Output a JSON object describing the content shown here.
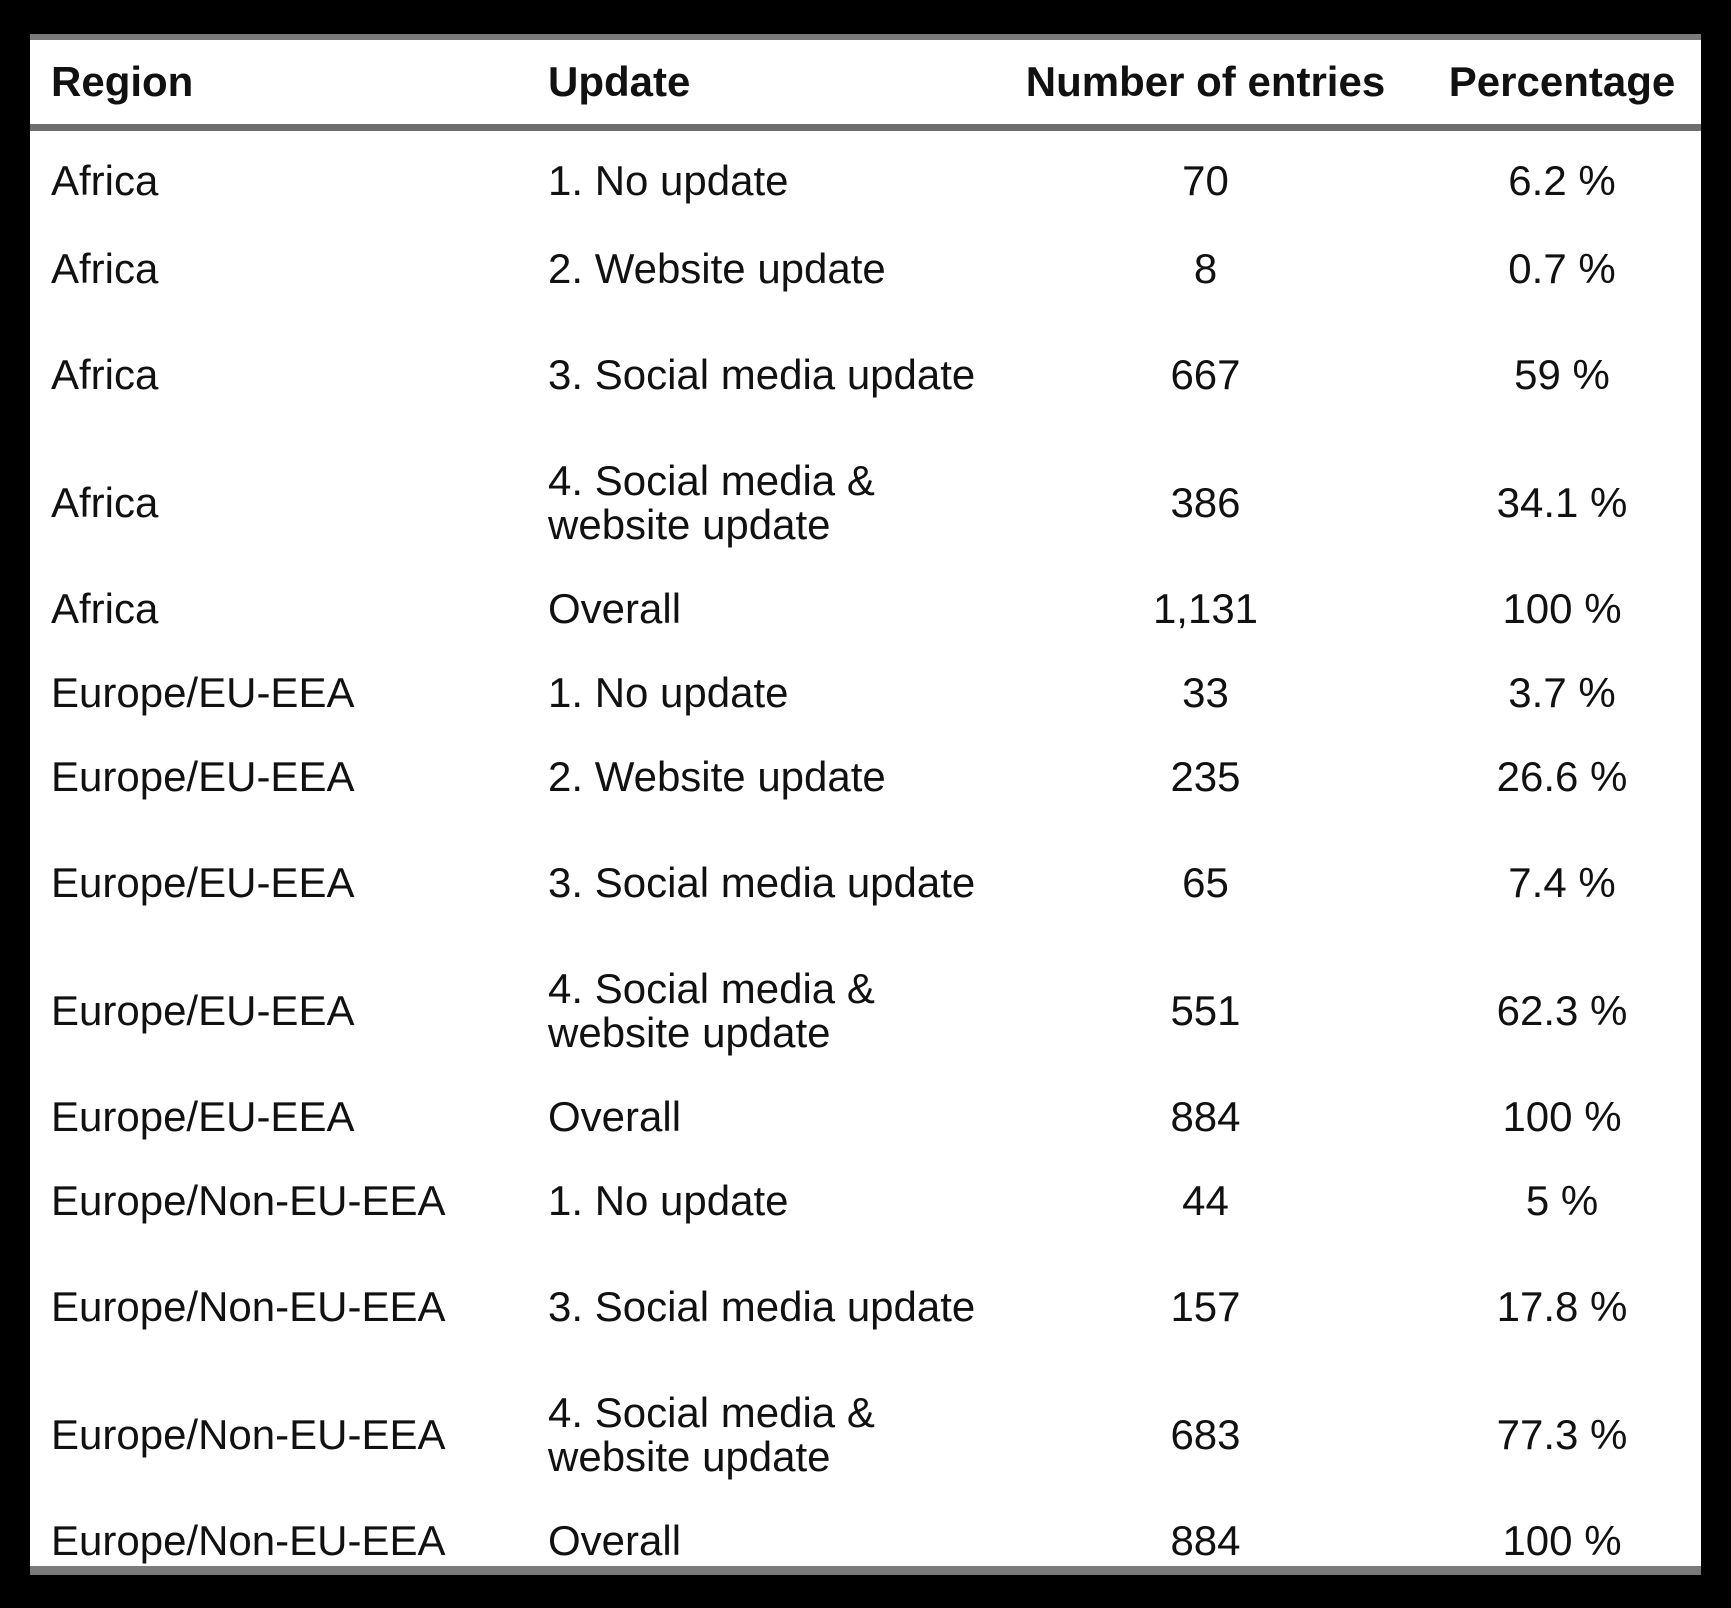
{
  "table": {
    "headers": {
      "region": "Region",
      "update": "Update",
      "count": "Number of entries",
      "percentage": "Percentage"
    },
    "rows": [
      {
        "region": "Africa",
        "update": "1. No update",
        "count": "70",
        "percentage": "6.2 %"
      },
      {
        "region": "Africa",
        "update": "2. Website update",
        "count": "8",
        "percentage": "0.7 %"
      },
      {
        "region": "Africa",
        "update": "3. Social media update",
        "count": "667",
        "percentage": "59 %"
      },
      {
        "region": "Africa",
        "update": "4. Social media & website update",
        "count": "386",
        "percentage": "34.1 %"
      },
      {
        "region": "Africa",
        "update": "Overall",
        "count": "1,131",
        "percentage": "100 %"
      },
      {
        "region": "Europe/EU-EEA",
        "update": "1. No update",
        "count": "33",
        "percentage": "3.7 %"
      },
      {
        "region": "Europe/EU-EEA",
        "update": "2. Website update",
        "count": "235",
        "percentage": "26.6 %"
      },
      {
        "region": "Europe/EU-EEA",
        "update": "3. Social media update",
        "count": "65",
        "percentage": "7.4 %"
      },
      {
        "region": "Europe/EU-EEA",
        "update": "4. Social media & website update",
        "count": "551",
        "percentage": "62.3 %"
      },
      {
        "region": "Europe/EU-EEA",
        "update": "Overall",
        "count": "884",
        "percentage": "100 %"
      },
      {
        "region": "Europe/Non-EU-EEA",
        "update": "1. No update",
        "count": "44",
        "percentage": "5 %"
      },
      {
        "region": "Europe/Non-EU-EEA",
        "update": "3. Social media update",
        "count": "157",
        "percentage": "17.8 %"
      },
      {
        "region": "Europe/Non-EU-EEA",
        "update": "4. Social media & website update",
        "count": "683",
        "percentage": "77.3 %"
      },
      {
        "region": "Europe/Non-EU-EEA",
        "update": "Overall",
        "count": "884",
        "percentage": "100 %"
      }
    ]
  }
}
